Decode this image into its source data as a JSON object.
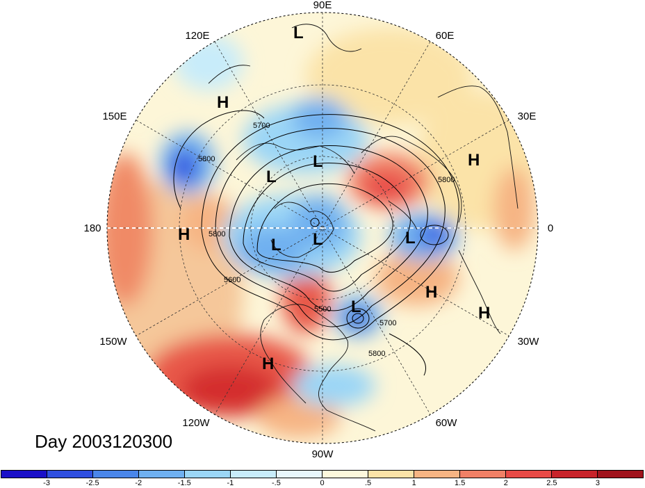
{
  "map": {
    "date_label": "Day 2003120300",
    "longitude_labels": [
      {
        "text": "90E"
      },
      {
        "text": "60E"
      },
      {
        "text": "30E"
      },
      {
        "text": "0"
      },
      {
        "text": "30W"
      },
      {
        "text": "60W"
      },
      {
        "text": "90W"
      },
      {
        "text": "120W"
      },
      {
        "text": "150W"
      },
      {
        "text": "180"
      },
      {
        "text": "150E"
      },
      {
        "text": "120E"
      }
    ],
    "pressure_systems": [
      {
        "label": "L",
        "type": "low"
      },
      {
        "label": "H",
        "type": "high"
      },
      {
        "label": "L",
        "type": "low"
      },
      {
        "label": "L",
        "type": "low"
      },
      {
        "label": "H",
        "type": "high"
      },
      {
        "label": "H",
        "type": "high"
      },
      {
        "label": "L",
        "type": "low"
      },
      {
        "label": "L",
        "type": "low"
      },
      {
        "label": "L",
        "type": "low"
      },
      {
        "label": "H",
        "type": "high"
      },
      {
        "label": "L",
        "type": "low"
      },
      {
        "label": "H",
        "type": "high"
      },
      {
        "label": "H",
        "type": "high"
      }
    ],
    "contour_labels": [
      "5700",
      "5800",
      "5800",
      "5800",
      "5600",
      "5500",
      "5700",
      "5800"
    ],
    "colorbar": {
      "ticks": [
        "-3",
        "-2.5",
        "-2",
        "-1.5",
        "-1",
        "-.5",
        "0",
        ".5",
        "1",
        "1.5",
        "2",
        "2.5",
        "3"
      ],
      "colors": [
        "#1a10c8",
        "#2f4fe0",
        "#4a86ea",
        "#6fb0f0",
        "#9bd6f6",
        "#c8ecfa",
        "#e8f6fb",
        "#fdf8dc",
        "#fbe3a8",
        "#f6b483",
        "#f08066",
        "#e84a46",
        "#c8232a",
        "#a0131c"
      ]
    }
  }
}
